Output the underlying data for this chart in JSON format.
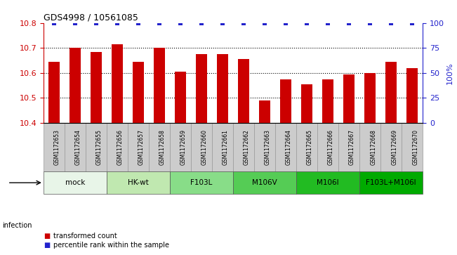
{
  "title": "GDS4998 / 10561085",
  "samples": [
    "GSM1172653",
    "GSM1172654",
    "GSM1172655",
    "GSM1172656",
    "GSM1172657",
    "GSM1172658",
    "GSM1172659",
    "GSM1172660",
    "GSM1172661",
    "GSM1172662",
    "GSM1172663",
    "GSM1172664",
    "GSM1172665",
    "GSM1172666",
    "GSM1172667",
    "GSM1172668",
    "GSM1172669",
    "GSM1172670"
  ],
  "bar_values": [
    10.645,
    10.7,
    10.685,
    10.715,
    10.645,
    10.7,
    10.605,
    10.675,
    10.675,
    10.655,
    10.49,
    10.575,
    10.555,
    10.575,
    10.595,
    10.6,
    10.645,
    10.62
  ],
  "percentile_values": [
    100,
    100,
    100,
    100,
    100,
    100,
    100,
    100,
    100,
    100,
    100,
    100,
    100,
    100,
    100,
    100,
    100,
    100
  ],
  "ylim_left": [
    10.4,
    10.8
  ],
  "ylim_right": [
    0,
    100
  ],
  "bar_color": "#cc0000",
  "dot_color": "#2222cc",
  "group_configs": [
    {
      "label": "mock",
      "indices": [
        0,
        1,
        2
      ],
      "color": "#e8f5e8"
    },
    {
      "label": "HK-wt",
      "indices": [
        3,
        4,
        5
      ],
      "color": "#c0e8b0"
    },
    {
      "label": "F103L",
      "indices": [
        6,
        7,
        8
      ],
      "color": "#88dd88"
    },
    {
      "label": "M106V",
      "indices": [
        9,
        10,
        11
      ],
      "color": "#55cc55"
    },
    {
      "label": "M106I",
      "indices": [
        12,
        13,
        14
      ],
      "color": "#22bb22"
    },
    {
      "label": "F103L+M106I",
      "indices": [
        15,
        16,
        17
      ],
      "color": "#00aa00"
    }
  ],
  "infection_label": "infection",
  "legend_bar_label": "transformed count",
  "legend_dot_label": "percentile rank within the sample",
  "yticks_left": [
    10.4,
    10.5,
    10.6,
    10.7,
    10.8
  ],
  "yticks_right": [
    0,
    25,
    50,
    75,
    100
  ],
  "grid_lines": [
    10.5,
    10.6,
    10.7
  ],
  "sample_cell_color": "#cccccc",
  "sample_cell_edge": "#999999"
}
